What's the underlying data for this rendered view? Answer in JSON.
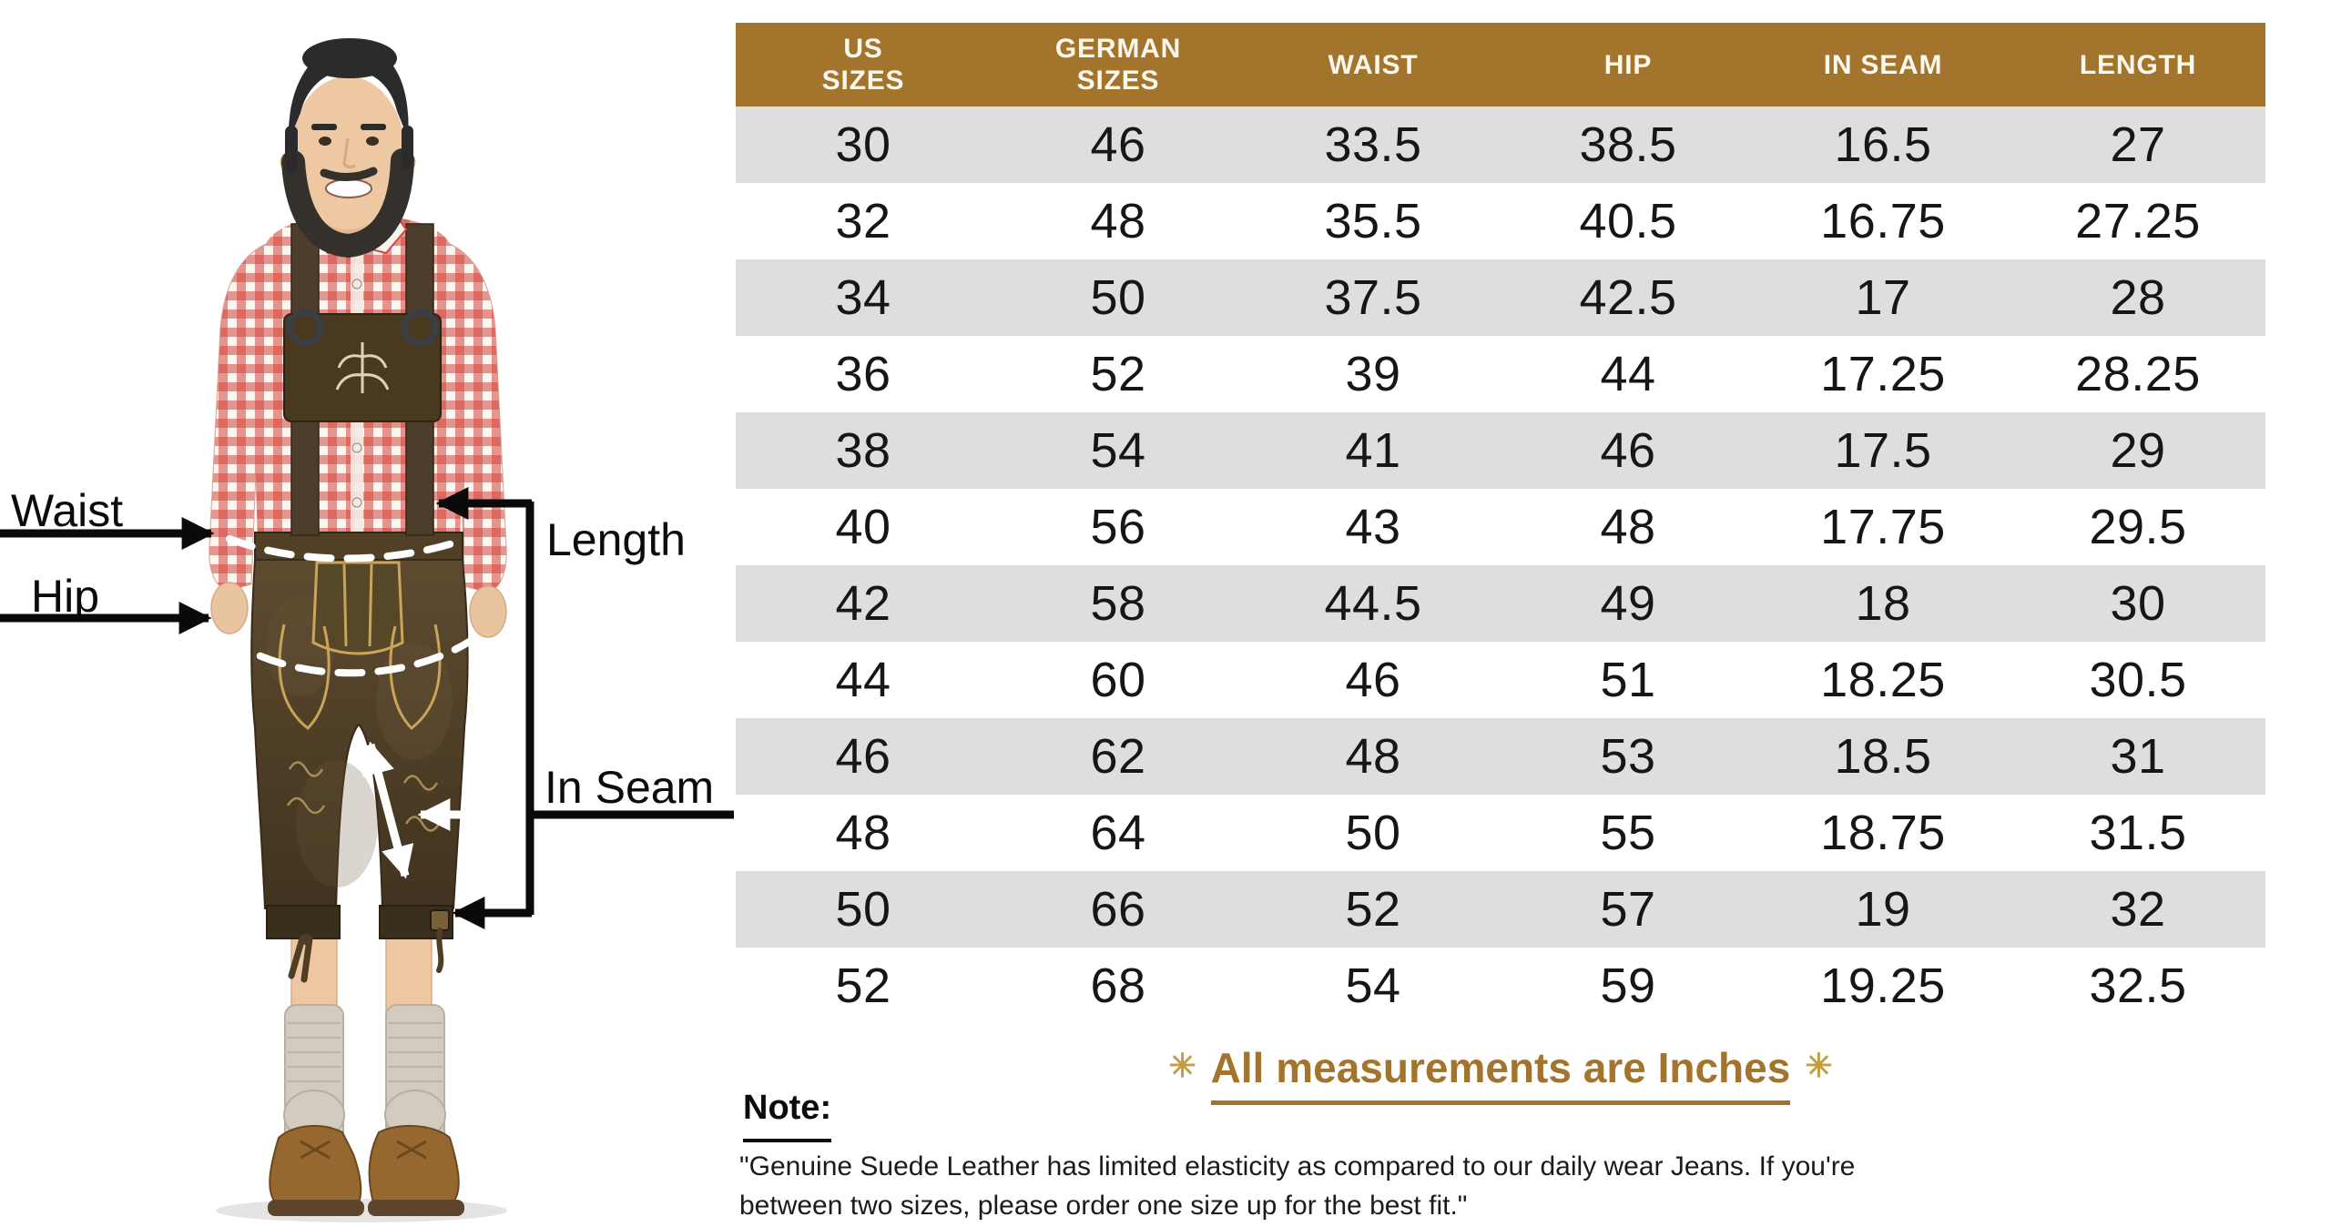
{
  "figure": {
    "labels": {
      "waist": "Waist",
      "hip": "Hip",
      "length": "Length",
      "inseam": "In Seam"
    }
  },
  "table": {
    "headers": [
      "US\nSIZES",
      "GERMAN\nSIZES",
      "WAIST",
      "HIP",
      "IN SEAM",
      "LENGTH"
    ],
    "rows": [
      [
        "30",
        "46",
        "33.5",
        "38.5",
        "16.5",
        "27"
      ],
      [
        "32",
        "48",
        "35.5",
        "40.5",
        "16.75",
        "27.25"
      ],
      [
        "34",
        "50",
        "37.5",
        "42.5",
        "17",
        "28"
      ],
      [
        "36",
        "52",
        "39",
        "44",
        "17.25",
        "28.25"
      ],
      [
        "38",
        "54",
        "41",
        "46",
        "17.5",
        "29"
      ],
      [
        "40",
        "56",
        "43",
        "48",
        "17.75",
        "29.5"
      ],
      [
        "42",
        "58",
        "44.5",
        "49",
        "18",
        "30"
      ],
      [
        "44",
        "60",
        "46",
        "51",
        "18.25",
        "30.5"
      ],
      [
        "46",
        "62",
        "48",
        "53",
        "18.5",
        "31"
      ],
      [
        "48",
        "64",
        "50",
        "55",
        "18.75",
        "31.5"
      ],
      [
        "50",
        "66",
        "52",
        "57",
        "19",
        "32"
      ],
      [
        "52",
        "68",
        "54",
        "59",
        "19.25",
        "32.5"
      ]
    ]
  },
  "heading": {
    "asterisk": "✳",
    "text": "All measurements are Inches"
  },
  "note": {
    "label": "Note:",
    "line1": "\"Genuine Suede Leather has limited elasticity as compared to our daily wear Jeans. If you're",
    "line2": "between two sizes, please order one size up for the best fit.\""
  },
  "colors": {
    "header_bg": "#A3742C",
    "header_text": "#FCF8EE",
    "row_alt_bg": "#DEDEE1",
    "accent_gold": "#A3742C",
    "asterisk_gold": "#C49C42"
  }
}
